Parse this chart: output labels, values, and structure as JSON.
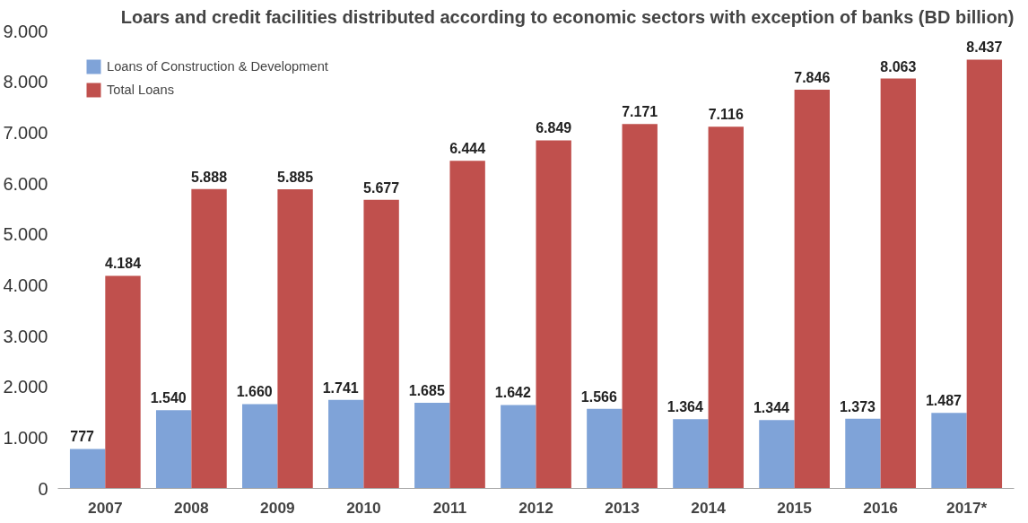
{
  "chart_data": {
    "type": "bar",
    "title": "Loars and credit facilities distributed according to economic sectors with exception of banks (BD billion)",
    "categories": [
      "2007",
      "2008",
      "2009",
      "2010",
      "2011",
      "2012",
      "2013",
      "2014",
      "2015",
      "2016",
      "2017*"
    ],
    "series": [
      {
        "name": "Loans of Construction & Development",
        "color": "#7fa3d8",
        "values": [
          777,
          1540,
          1660,
          1741,
          1685,
          1642,
          1566,
          1364,
          1344,
          1373,
          1487
        ],
        "value_labels": [
          "777",
          "1.540",
          "1.660",
          "1.741",
          "1.685",
          "1.642",
          "1.566",
          "1.364",
          "1.344",
          "1.373",
          "1.487"
        ]
      },
      {
        "name": "Total Loans",
        "color": "#c0504d",
        "values": [
          4184,
          5888,
          5885,
          5677,
          6444,
          6849,
          7171,
          7116,
          7846,
          8063,
          8437
        ],
        "value_labels": [
          "4.184",
          "5.888",
          "5.885",
          "5.677",
          "6.444",
          "6.849",
          "7.171",
          "7.116",
          "7.846",
          "8.063",
          "8.437"
        ]
      }
    ],
    "ylim": [
      0,
      9000
    ],
    "yticks": [
      0,
      {
        "value": 1000,
        "label": "1.000"
      },
      {
        "value": 2000,
        "label": "2.000"
      },
      {
        "value": 3000,
        "label": "3.000"
      },
      {
        "value": 4000,
        "label": "4.000"
      },
      {
        "value": 5000,
        "label": "5.000"
      },
      {
        "value": 6000,
        "label": "6.000"
      },
      {
        "value": 7000,
        "label": "7.000"
      },
      {
        "value": 8000,
        "label": "8.000"
      },
      {
        "value": 9000,
        "label": "9.000"
      }
    ],
    "grid": false,
    "legend": "top left"
  }
}
